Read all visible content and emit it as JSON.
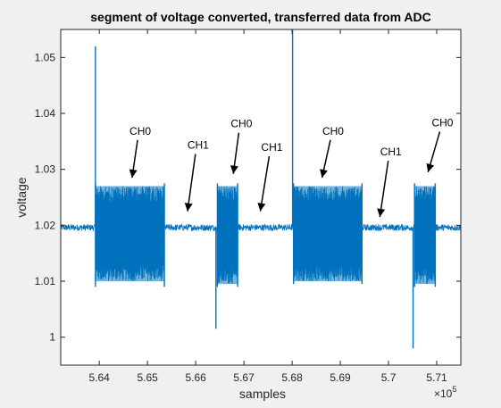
{
  "chart_data": {
    "type": "line",
    "title": "segment of voltage converted, transferred data from ADC",
    "xlabel": "samples",
    "ylabel": "voltage",
    "x_exponent_label": "×10",
    "x_exponent_power": "5",
    "xlim": [
      5.632,
      5.715
    ],
    "ylim": [
      0.995,
      1.055
    ],
    "x_ticks": [
      5.64,
      5.65,
      5.66,
      5.67,
      5.68,
      5.69,
      5.7,
      5.71
    ],
    "x_tick_labels": [
      "5.64",
      "5.65",
      "5.66",
      "5.67",
      "5.68",
      "5.69",
      "5.7",
      "5.71"
    ],
    "y_ticks": [
      1.0,
      1.01,
      1.02,
      1.03,
      1.04,
      1.05
    ],
    "y_tick_labels": [
      "1",
      "1.01",
      "1.02",
      "1.03",
      "1.04",
      "1.05"
    ],
    "grid": false,
    "line_color": "#0072BD",
    "baseline": 1.0196,
    "baseline_noise": 0.0006,
    "bursts": [
      {
        "x_start": 5.6392,
        "x_end": 5.6535,
        "low": 1.01,
        "high": 1.027,
        "edge_low": 1.009,
        "edge_high": 1.0275
      },
      {
        "x_start": 5.6645,
        "x_end": 5.6687,
        "low": 1.0095,
        "high": 1.027,
        "edge_low": 1.009,
        "edge_high": 1.0275
      },
      {
        "x_start": 5.6803,
        "x_end": 5.6945,
        "low": 1.01,
        "high": 1.027,
        "edge_low": 1.0095,
        "edge_high": 1.0275
      },
      {
        "x_start": 5.7054,
        "x_end": 5.7097,
        "low": 1.0095,
        "high": 1.027,
        "edge_low": 1.009,
        "edge_high": 1.0275
      }
    ],
    "spikes": [
      {
        "x": 5.6392,
        "y": 1.052
      },
      {
        "x": 5.6642,
        "y": 1.0015
      },
      {
        "x": 5.6801,
        "y": 1.055
      },
      {
        "x": 5.7051,
        "y": 0.998
      }
    ],
    "annotations": [
      {
        "text": "CH0",
        "text_x": 5.6485,
        "text_y": 1.0362,
        "tip_x": 5.6468,
        "tip_y": 1.0285
      },
      {
        "text": "CH1",
        "text_x": 5.6605,
        "text_y": 1.0337,
        "tip_x": 5.6583,
        "tip_y": 1.0225
      },
      {
        "text": "CH0",
        "text_x": 5.6695,
        "text_y": 1.0375,
        "tip_x": 5.6678,
        "tip_y": 1.0292
      },
      {
        "text": "CH1",
        "text_x": 5.6758,
        "text_y": 1.0333,
        "tip_x": 5.6734,
        "tip_y": 1.0225
      },
      {
        "text": "CH0",
        "text_x": 5.6885,
        "text_y": 1.0362,
        "tip_x": 5.6862,
        "tip_y": 1.0285
      },
      {
        "text": "CH1",
        "text_x": 5.7005,
        "text_y": 1.0325,
        "tip_x": 5.6982,
        "tip_y": 1.0215
      },
      {
        "text": "CH0",
        "text_x": 5.7112,
        "text_y": 1.0377,
        "tip_x": 5.7082,
        "tip_y": 1.0295
      }
    ]
  }
}
